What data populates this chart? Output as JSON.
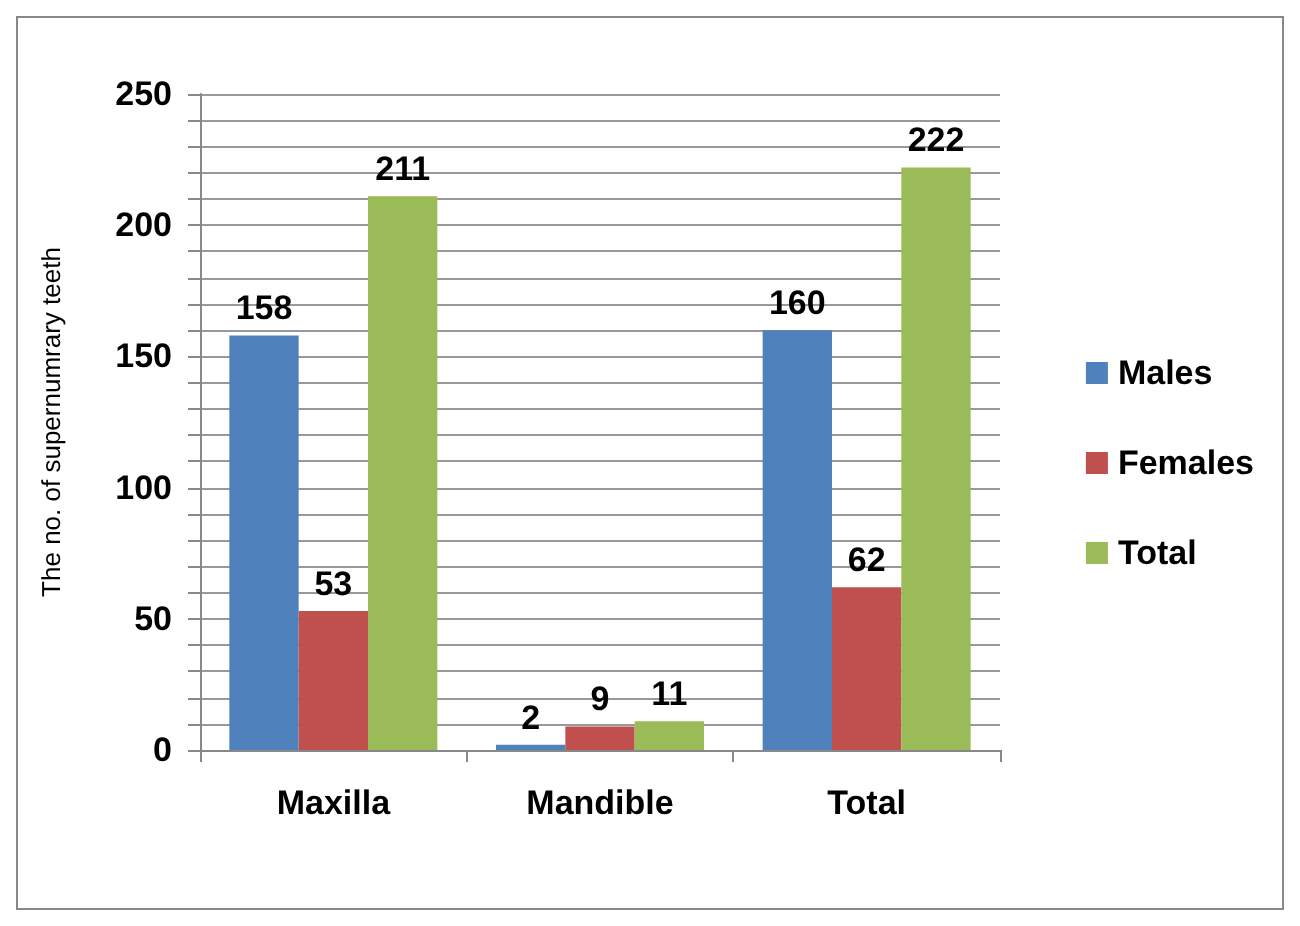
{
  "chart_data": {
    "type": "bar",
    "ylabel": "The no. of supernumrary teeth",
    "categories": [
      "Maxilla",
      "Mandible",
      "Total"
    ],
    "series": [
      {
        "name": "Males",
        "color": "#4f81bd",
        "values": [
          158,
          2,
          160
        ]
      },
      {
        "name": "Females",
        "color": "#c0504d",
        "values": [
          53,
          9,
          62
        ]
      },
      {
        "name": "Total",
        "color": "#9bbb59",
        "values": [
          211,
          11,
          222
        ]
      }
    ],
    "ylim": [
      0,
      250
    ],
    "yticks": [
      0,
      {
        "value": 10,
        "label": null
      },
      {
        "value": 20,
        "label": null
      },
      {
        "value": 30,
        "label": null
      },
      {
        "value": 40,
        "label": null
      },
      50,
      {
        "value": 60,
        "label": null
      },
      {
        "value": 70,
        "label": null
      },
      {
        "value": 80,
        "label": null
      },
      {
        "value": 90,
        "label": null
      },
      100,
      {
        "value": 110,
        "label": null
      },
      {
        "value": 120,
        "label": null
      },
      {
        "value": 130,
        "label": null
      },
      {
        "value": 140,
        "label": null
      },
      150,
      {
        "value": 160,
        "label": null
      },
      {
        "value": 170,
        "label": null
      },
      {
        "value": 180,
        "label": null
      },
      {
        "value": 190,
        "label": null
      },
      200,
      {
        "value": 210,
        "label": null
      },
      {
        "value": 220,
        "label": null
      },
      {
        "value": 230,
        "label": null
      },
      {
        "value": 240,
        "label": null
      },
      250
    ],
    "grid": "y",
    "legend": "right",
    "data_labels": true
  }
}
